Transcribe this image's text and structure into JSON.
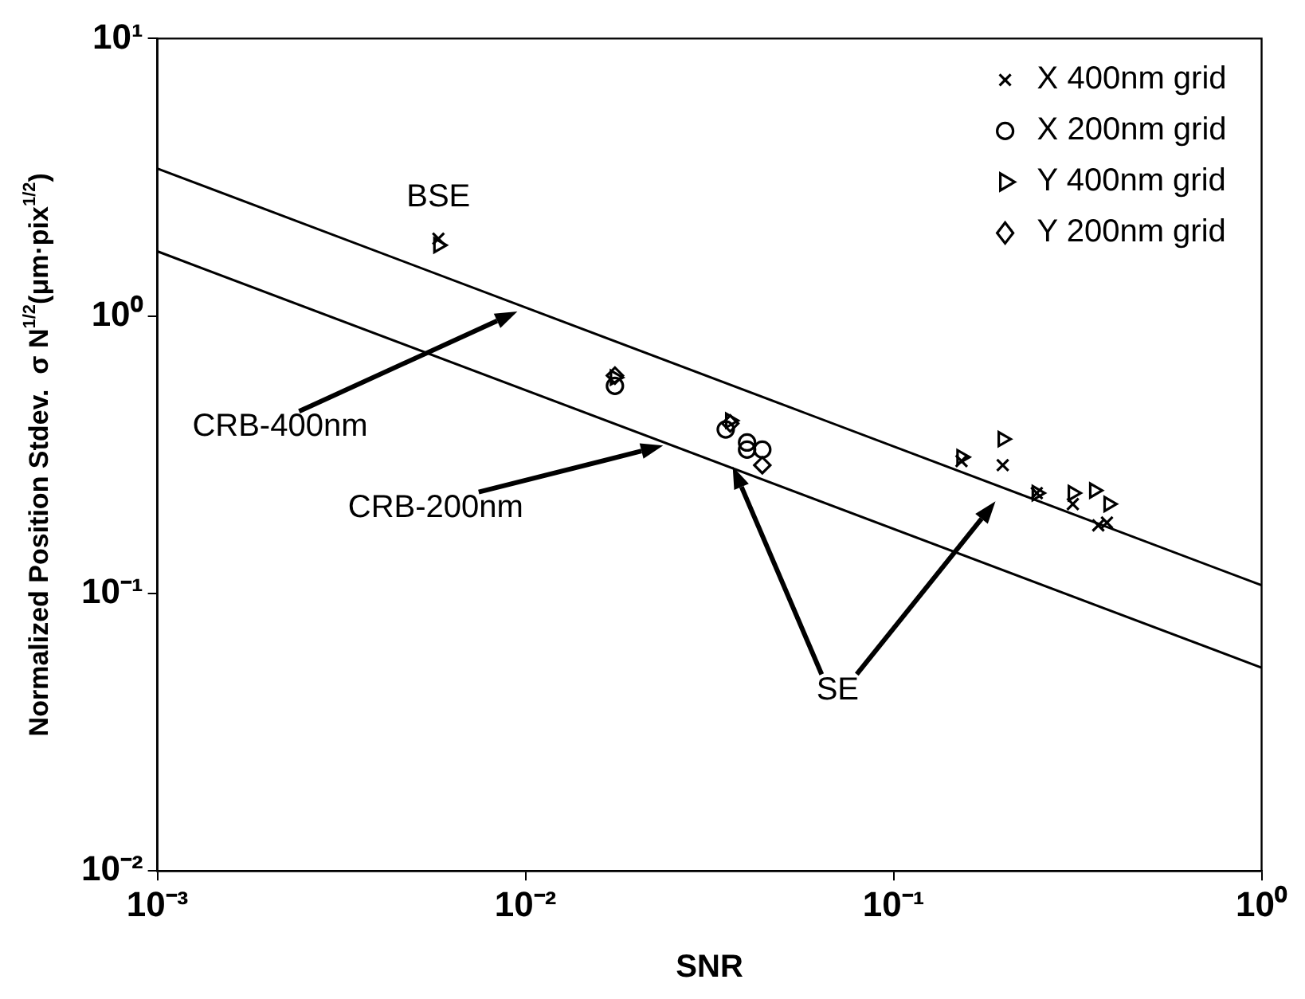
{
  "chart_data": {
    "type": "scatter",
    "xlabel": "SNR",
    "ylabel": "Normalized Position Stdev.  σ N$^{1/2}$(μm·pix$^{1/2}$)",
    "log": "xy",
    "grid": false,
    "legend": "top right",
    "xlim": [
      0.001,
      1
    ],
    "ylim": [
      0.01,
      10
    ],
    "xticks": [
      {
        "value": 0.001,
        "label": "10⁻³"
      },
      {
        "value": 0.01,
        "label": "10⁻²"
      },
      {
        "value": 0.1,
        "label": "10⁻¹"
      },
      {
        "value": 1,
        "label": "10⁰"
      }
    ],
    "yticks": [
      {
        "value": 0.01,
        "label": "10⁻²"
      },
      {
        "value": 0.1,
        "label": "10⁻¹"
      },
      {
        "value": 1,
        "label": "10⁰"
      },
      {
        "value": 10,
        "label": "10¹"
      }
    ],
    "series": [
      {
        "name": "X 400nm grid",
        "color": "#000000",
        "marker": "cross",
        "x": [
          0.0058,
          0.153,
          0.198,
          0.245,
          0.307,
          0.36,
          0.38
        ],
        "values": [
          1.9,
          0.3,
          0.29,
          0.23,
          0.21,
          0.176,
          0.18
        ]
      },
      {
        "name": "X 200nm grid",
        "color": "#000000",
        "marker": "circle",
        "x": [
          0.0175,
          0.035,
          0.04,
          0.044,
          0.04
        ],
        "values": [
          0.56,
          0.39,
          0.35,
          0.33,
          0.33
        ]
      },
      {
        "name": "Y 400nm grid",
        "color": "#000000",
        "marker": "triangle",
        "x": [
          0.0058,
          0.0175,
          0.036,
          0.153,
          0.198,
          0.245,
          0.307,
          0.351,
          0.384
        ],
        "values": [
          1.8,
          0.6,
          0.42,
          0.31,
          0.36,
          0.23,
          0.23,
          0.235,
          0.21
        ]
      },
      {
        "name": "Y 200nm grid",
        "color": "#000000",
        "marker": "diamond",
        "x": [
          0.0175,
          0.036,
          0.044
        ],
        "values": [
          0.61,
          0.41,
          0.29
        ]
      },
      {
        "type": "line",
        "color": "#000000",
        "marker": "none",
        "x": [
          0.001,
          1
        ],
        "values": [
          3.4,
          0.107
        ]
      },
      {
        "type": "line",
        "color": "#000000",
        "marker": "none",
        "x": [
          0.001,
          1
        ],
        "values": [
          1.71,
          0.054
        ]
      }
    ],
    "annotations": [
      {
        "text": "BSE",
        "x": 0.0058,
        "y": 1.9
      },
      "CRB-400nm",
      "CRB-200nm",
      "SE"
    ]
  }
}
